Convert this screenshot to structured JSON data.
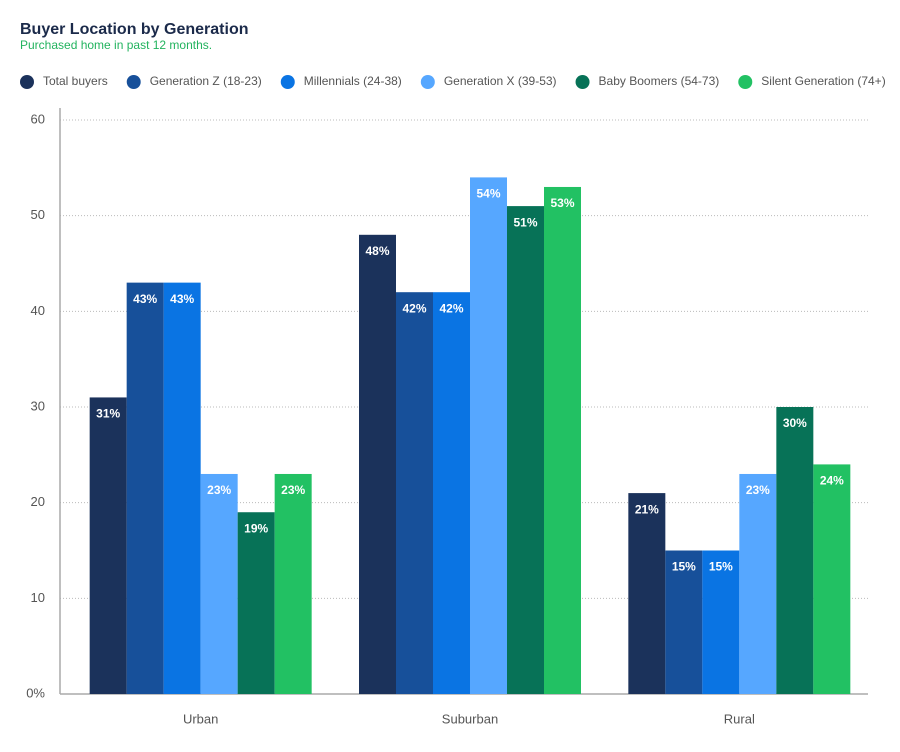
{
  "chart_data": {
    "type": "bar",
    "title": "Buyer Location by Generation",
    "subtitle": "Purchased home in past 12 months.",
    "categories": [
      "Urban",
      "Suburban",
      "Rural"
    ],
    "series": [
      {
        "name": "Total buyers",
        "color": "#1b325b",
        "values": [
          31,
          48,
          21
        ],
        "value_labels": [
          "31%",
          "48%",
          "21%"
        ]
      },
      {
        "name": "Generation Z (18-23)",
        "color": "#17509a",
        "values": [
          43,
          42,
          15
        ],
        "value_labels": [
          "43%",
          "42%",
          "15%"
        ]
      },
      {
        "name": "Millennials (24-38)",
        "color": "#0a74e3",
        "values": [
          43,
          42,
          15
        ],
        "value_labels": [
          "43%",
          "42%",
          "15%"
        ]
      },
      {
        "name": "Generation X (39-53)",
        "color": "#56a7ff",
        "values": [
          23,
          54,
          23
        ],
        "value_labels": [
          "23%",
          "54%",
          "23%"
        ]
      },
      {
        "name": "Baby Boomers (54-73)",
        "color": "#077257",
        "values": [
          19,
          51,
          30
        ],
        "value_labels": [
          "19%",
          "51%",
          "30%"
        ]
      },
      {
        "name": "Silent Generation (74+)",
        "color": "#22c163",
        "values": [
          23,
          53,
          24
        ],
        "value_labels": [
          "23%",
          "53%",
          "24%"
        ]
      }
    ],
    "ylim": [
      0,
      60
    ],
    "yticks": [
      {
        "value": 0,
        "label": "0%"
      },
      10,
      20,
      30,
      40,
      50,
      60
    ],
    "grid": true,
    "legend": "top"
  }
}
